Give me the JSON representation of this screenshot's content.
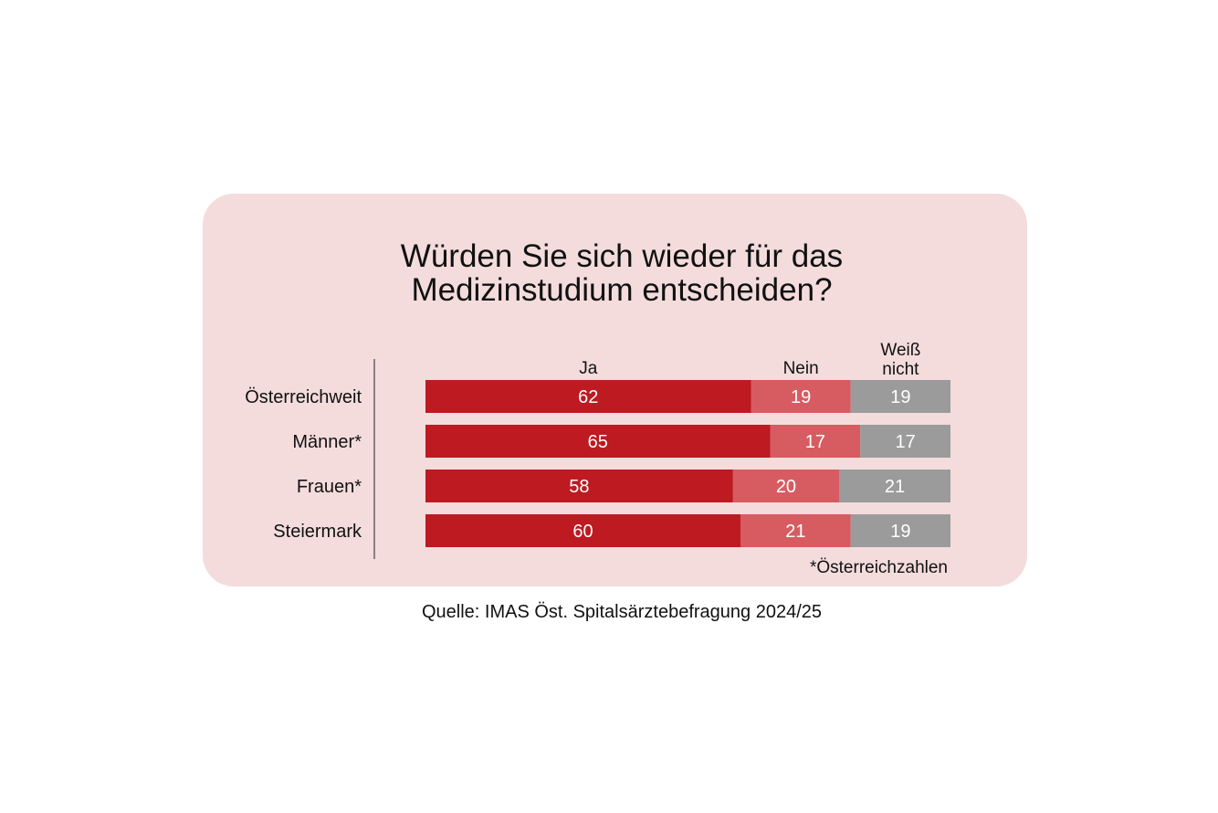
{
  "chart_data": {
    "type": "bar",
    "stacked": true,
    "orientation": "horizontal",
    "title_lines": [
      "Würden Sie sich wieder für das",
      "Medizinstudium entscheiden?"
    ],
    "categories": [
      "Österreichweit",
      "Männer*",
      "Frauen*",
      "Steiermark"
    ],
    "series": [
      {
        "name": "Ja",
        "values": [
          62,
          65,
          58,
          60
        ],
        "color": "#bd1a21"
      },
      {
        "name": "Nein",
        "values": [
          19,
          17,
          20,
          21
        ],
        "color": "#d65c61"
      },
      {
        "name": "Weiß nicht",
        "values": [
          19,
          17,
          21,
          19
        ],
        "color": "#9b9b9b"
      }
    ],
    "legend_placement": "top",
    "footnote": "*Österreichzahlen",
    "source": "Quelle: IMAS Öst. Spitalsärztebefragung 2024/25"
  },
  "colors": {
    "panel_background": "#f4dcdc",
    "page_background": "#ffffff",
    "value_label": "#ffffff"
  }
}
